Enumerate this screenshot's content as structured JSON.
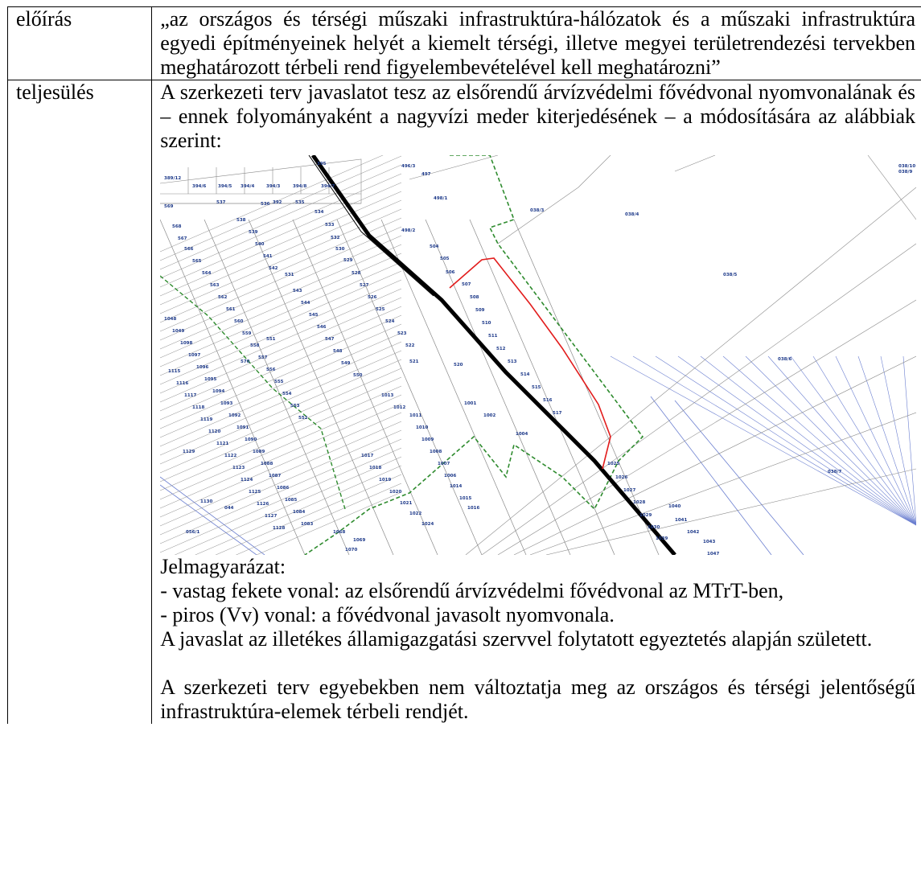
{
  "rule_row": {
    "label": "előírás",
    "text": "„az országos és térségi műszaki infrastruktúra-hálózatok és a műszaki infrastruktúra egyedi építményeinek helyét a kiemelt térségi, illetve megyei területrendezési tervekben meghatározott térbeli rend figyelembevételével kell meghatározni”"
  },
  "fulfil_row": {
    "label": "teljesülés",
    "intro": "A szerkezeti terv javaslatot tesz az elsőrendű árvízvédelmi fővédvonal nyomvonalának és – ennek folyományaként a nagyvízi meder kiterjedésének – a módosítására az alábbiak szerint:",
    "legend_title": "Jelmagyarázat:",
    "legend_black": "- vastag fekete vonal: az elsőrendű árvízvédelmi fővédvonal az MTrT-ben,",
    "legend_red": "- piros (Vv) vonal: a fővédvonal javasolt nyomvonala.",
    "note": "A javaslat az illetékes államigazgatási szervvel folytatott egyeztetés alapján született.",
    "closing": "A szerkezeti terv egyebekben nem változtatja meg az országos és térségi jelentőségű infrastruktúra-elemek térbeli rendjét."
  },
  "map": {
    "parcel_numbers": [
      "395",
      "389/12",
      "394/6",
      "394/5",
      "394/4",
      "394/3",
      "394/8",
      "394/7",
      "392",
      "496/3",
      "497",
      "498/1",
      "038/3",
      "038/4",
      "038/10",
      "038/9",
      "498/2",
      "504",
      "505",
      "506",
      "507",
      "508",
      "509",
      "510",
      "511",
      "512",
      "513",
      "514",
      "515",
      "516",
      "517",
      "038/5",
      "038/6",
      "038/7",
      "569",
      "568",
      "567",
      "566",
      "565",
      "564",
      "563",
      "562",
      "561",
      "560",
      "559",
      "558",
      "557",
      "556",
      "555",
      "554",
      "553",
      "552",
      "537",
      "536",
      "535",
      "534",
      "533",
      "532",
      "530",
      "529",
      "528",
      "527",
      "526",
      "525",
      "524",
      "523",
      "522",
      "538",
      "539",
      "540",
      "541",
      "542",
      "531",
      "543",
      "544",
      "545",
      "546",
      "547",
      "548",
      "549",
      "550",
      "551",
      "570",
      "521",
      "520",
      "1001",
      "1002",
      "1004",
      "1013",
      "1012",
      "1011",
      "1010",
      "1009",
      "1008",
      "1007",
      "1006",
      "1014",
      "1015",
      "1016",
      "1017",
      "1018",
      "1019",
      "1020",
      "1021",
      "1022",
      "1024",
      "1025",
      "1026",
      "1027",
      "1028",
      "1029",
      "1030",
      "1039",
      "1040",
      "1041",
      "1042",
      "1043",
      "1047",
      "1048",
      "1049",
      "1098",
      "1097",
      "1096",
      "1095",
      "1094",
      "1093",
      "1092",
      "1091",
      "1090",
      "1089",
      "1088",
      "1087",
      "1086",
      "1085",
      "1084",
      "1083",
      "1115",
      "1116",
      "1117",
      "1118",
      "1119",
      "1120",
      "1121",
      "1122",
      "1123",
      "1124",
      "1125",
      "1126",
      "1127",
      "1128",
      "1129",
      "1130",
      "044",
      "056/1",
      "1068",
      "1069",
      "1070"
    ],
    "colors": {
      "main_dyke": "#000000",
      "proposed_line": "#e21c1c",
      "floodbed_boundary": "#2e8b2e",
      "parcel_line": "#8a8a8a",
      "label": "#1e3a8a",
      "blue_hatch": "#6b7fd0"
    }
  }
}
